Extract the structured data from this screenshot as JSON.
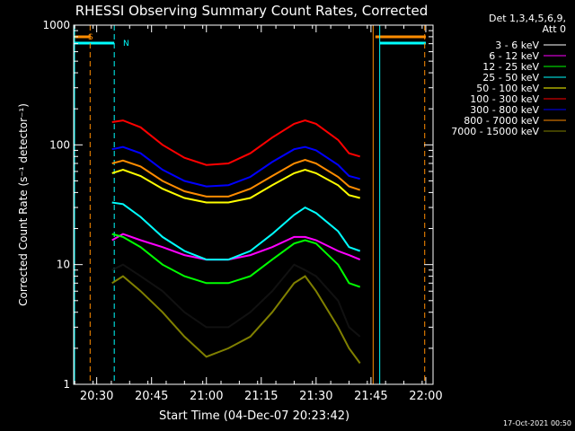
{
  "chart_data": {
    "type": "line",
    "title": "RHESSI Observing Summary Count Rates, Corrected",
    "xlabel": "Start Time (04-Dec-07 20:23:42)",
    "ylabel": "Corrected Count Rate (s⁻¹ detector⁻¹)",
    "y_scale": "log",
    "ylim": [
      1,
      1000
    ],
    "xlim": [
      20.395,
      22.033
    ],
    "x_ticks": [
      "20:30",
      "20:45",
      "21:00",
      "21:15",
      "21:30",
      "21:45",
      "22:00"
    ],
    "y_ticks": [
      "1",
      "10",
      "100",
      "1000"
    ],
    "legend_header": [
      "Det 1,3,4,5,6,9,",
      "Att 0"
    ],
    "legend_position": "right",
    "series": [
      {
        "name": "3 - 6 keV",
        "color": "#000000",
        "points": [
          [
            20.57,
            9
          ],
          [
            20.62,
            10
          ],
          [
            20.7,
            8
          ],
          [
            20.8,
            6
          ],
          [
            20.9,
            4
          ],
          [
            21.0,
            3
          ],
          [
            21.1,
            3
          ],
          [
            21.2,
            4
          ],
          [
            21.3,
            6
          ],
          [
            21.4,
            10
          ],
          [
            21.45,
            9
          ],
          [
            21.5,
            8
          ],
          [
            21.6,
            5
          ],
          [
            21.65,
            3
          ],
          [
            21.7,
            2.5
          ]
        ]
      },
      {
        "name": "6 - 12 keV",
        "color": "#ff00ff",
        "points": [
          [
            20.57,
            16
          ],
          [
            20.62,
            18
          ],
          [
            20.7,
            16
          ],
          [
            20.8,
            14
          ],
          [
            20.9,
            12
          ],
          [
            21.0,
            11
          ],
          [
            21.1,
            11
          ],
          [
            21.2,
            12
          ],
          [
            21.3,
            14
          ],
          [
            21.4,
            17
          ],
          [
            21.45,
            17
          ],
          [
            21.5,
            16
          ],
          [
            21.6,
            13
          ],
          [
            21.65,
            12
          ],
          [
            21.7,
            11
          ]
        ]
      },
      {
        "name": "12 - 25 keV",
        "color": "#00ff00",
        "points": [
          [
            20.57,
            18
          ],
          [
            20.62,
            17
          ],
          [
            20.7,
            14
          ],
          [
            20.8,
            10
          ],
          [
            20.9,
            8
          ],
          [
            21.0,
            7
          ],
          [
            21.1,
            7
          ],
          [
            21.2,
            8
          ],
          [
            21.3,
            11
          ],
          [
            21.4,
            15
          ],
          [
            21.45,
            16
          ],
          [
            21.5,
            15
          ],
          [
            21.6,
            10
          ],
          [
            21.65,
            7
          ],
          [
            21.7,
            6.5
          ]
        ]
      },
      {
        "name": "25 - 50 keV",
        "color": "#00ffff",
        "points": [
          [
            20.57,
            33
          ],
          [
            20.62,
            32
          ],
          [
            20.7,
            25
          ],
          [
            20.8,
            17
          ],
          [
            20.9,
            13
          ],
          [
            21.0,
            11
          ],
          [
            21.1,
            11
          ],
          [
            21.2,
            13
          ],
          [
            21.3,
            18
          ],
          [
            21.4,
            26
          ],
          [
            21.45,
            30
          ],
          [
            21.5,
            27
          ],
          [
            21.6,
            19
          ],
          [
            21.65,
            14
          ],
          [
            21.7,
            13
          ]
        ]
      },
      {
        "name": "50 - 100 keV",
        "color": "#ffff00",
        "points": [
          [
            20.57,
            58
          ],
          [
            20.62,
            62
          ],
          [
            20.7,
            55
          ],
          [
            20.8,
            43
          ],
          [
            20.9,
            36
          ],
          [
            21.0,
            33
          ],
          [
            21.1,
            33
          ],
          [
            21.2,
            36
          ],
          [
            21.3,
            46
          ],
          [
            21.4,
            58
          ],
          [
            21.45,
            62
          ],
          [
            21.5,
            58
          ],
          [
            21.6,
            46
          ],
          [
            21.65,
            38
          ],
          [
            21.7,
            36
          ]
        ]
      },
      {
        "name": "100 - 300 keV",
        "color": "#ff0000",
        "points": [
          [
            20.57,
            155
          ],
          [
            20.62,
            160
          ],
          [
            20.7,
            140
          ],
          [
            20.8,
            100
          ],
          [
            20.9,
            78
          ],
          [
            21.0,
            68
          ],
          [
            21.1,
            70
          ],
          [
            21.2,
            85
          ],
          [
            21.3,
            115
          ],
          [
            21.4,
            150
          ],
          [
            21.45,
            160
          ],
          [
            21.5,
            150
          ],
          [
            21.6,
            110
          ],
          [
            21.65,
            85
          ],
          [
            21.7,
            80
          ]
        ]
      },
      {
        "name": "300 - 800 keV",
        "color": "#0000ff",
        "points": [
          [
            20.57,
            92
          ],
          [
            20.62,
            96
          ],
          [
            20.7,
            85
          ],
          [
            20.8,
            62
          ],
          [
            20.9,
            50
          ],
          [
            21.0,
            45
          ],
          [
            21.1,
            46
          ],
          [
            21.2,
            54
          ],
          [
            21.3,
            72
          ],
          [
            21.4,
            92
          ],
          [
            21.45,
            96
          ],
          [
            21.5,
            90
          ],
          [
            21.6,
            68
          ],
          [
            21.65,
            55
          ],
          [
            21.7,
            52
          ]
        ]
      },
      {
        "name": "800 - 7000 keV",
        "color": "#ff8c00",
        "points": [
          [
            20.57,
            70
          ],
          [
            20.62,
            74
          ],
          [
            20.7,
            66
          ],
          [
            20.8,
            50
          ],
          [
            20.9,
            41
          ],
          [
            21.0,
            37
          ],
          [
            21.1,
            37
          ],
          [
            21.2,
            43
          ],
          [
            21.3,
            55
          ],
          [
            21.4,
            70
          ],
          [
            21.45,
            75
          ],
          [
            21.5,
            70
          ],
          [
            21.6,
            54
          ],
          [
            21.65,
            45
          ],
          [
            21.7,
            42
          ]
        ]
      },
      {
        "name": "7000 - 15000 keV",
        "color": "#808000",
        "points": [
          [
            20.57,
            7
          ],
          [
            20.62,
            8
          ],
          [
            20.7,
            6
          ],
          [
            20.8,
            4
          ],
          [
            20.9,
            2.5
          ],
          [
            21.0,
            1.7
          ],
          [
            21.1,
            2
          ],
          [
            21.2,
            2.5
          ],
          [
            21.3,
            4
          ],
          [
            21.4,
            7
          ],
          [
            21.45,
            8
          ],
          [
            21.5,
            6
          ],
          [
            21.6,
            3
          ],
          [
            21.65,
            2
          ],
          [
            21.7,
            1.5
          ]
        ]
      }
    ],
    "flags": [
      {
        "label": "S",
        "color": "#ff8c00",
        "start": 20.395,
        "end": 20.47
      },
      {
        "label": "N",
        "color": "#00ffff",
        "start": 20.395,
        "end": 20.58
      },
      {
        "color": "#ff8c00",
        "start": 21.77,
        "end": 22.0
      },
      {
        "color": "#00ffff",
        "start": 21.79,
        "end": 22.0
      }
    ],
    "footer_date": "17-Oct-2021 00:50"
  }
}
